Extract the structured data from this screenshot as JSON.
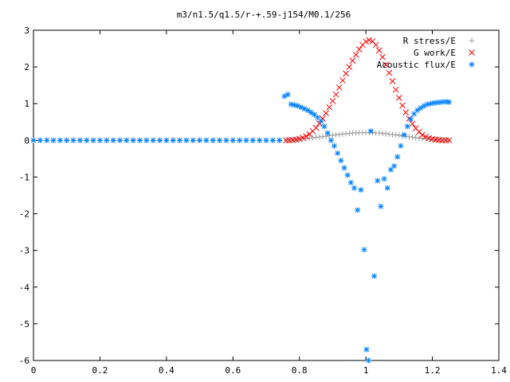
{
  "chart_data": {
    "type": "scatter",
    "title": "m3/n1.5/q1.5/r-+.59-j154/M0.1/256",
    "xlabel": "",
    "ylabel": "",
    "xlim": [
      0,
      1.4
    ],
    "ylim": [
      -6,
      3
    ],
    "xticks": [
      "0",
      "0.2",
      "0.4",
      "0.6",
      "0.8",
      "1",
      "1.2",
      "1.4"
    ],
    "yticks": [
      "3",
      "2",
      "1",
      "0",
      "-1",
      "-2",
      "-3",
      "-4",
      "-5",
      "-6"
    ],
    "grid": false,
    "legend_position": "top-right",
    "series": [
      {
        "name": "R stress/E",
        "marker": "plus",
        "color": "#a0a0a0",
        "x": [
          0.0,
          0.02,
          0.04,
          0.06,
          0.08,
          0.1,
          0.12,
          0.14,
          0.16,
          0.18,
          0.2,
          0.22,
          0.24,
          0.26,
          0.28,
          0.3,
          0.32,
          0.34,
          0.36,
          0.38,
          0.4,
          0.42,
          0.44,
          0.46,
          0.48,
          0.5,
          0.52,
          0.54,
          0.56,
          0.58,
          0.6,
          0.62,
          0.64,
          0.66,
          0.68,
          0.7,
          0.72,
          0.74,
          0.76,
          0.77,
          0.78,
          0.79,
          0.8,
          0.81,
          0.82,
          0.83,
          0.84,
          0.85,
          0.86,
          0.87,
          0.88,
          0.89,
          0.9,
          0.91,
          0.92,
          0.93,
          0.94,
          0.95,
          0.96,
          0.97,
          0.98,
          0.99,
          1.0,
          1.01,
          1.02,
          1.03,
          1.04,
          1.05,
          1.06,
          1.07,
          1.08,
          1.09,
          1.1,
          1.11,
          1.12,
          1.13,
          1.14,
          1.15,
          1.16,
          1.17,
          1.18,
          1.19,
          1.2,
          1.21,
          1.22,
          1.23,
          1.24,
          1.25
        ],
        "y": [
          0,
          0,
          0,
          0,
          0,
          0,
          0,
          0,
          0,
          0,
          0,
          0,
          0,
          0,
          0,
          0,
          0,
          0,
          0,
          0,
          0,
          0,
          0,
          0,
          0,
          0,
          0,
          0,
          0,
          0,
          0,
          0,
          0,
          0,
          0,
          0,
          0,
          0,
          0,
          0.01,
          0.01,
          0.02,
          0.03,
          0.04,
          0.05,
          0.06,
          0.07,
          0.08,
          0.09,
          0.1,
          0.11,
          0.13,
          0.14,
          0.15,
          0.16,
          0.17,
          0.18,
          0.19,
          0.2,
          0.2,
          0.21,
          0.21,
          0.21,
          0.21,
          0.21,
          0.2,
          0.2,
          0.19,
          0.18,
          0.17,
          0.16,
          0.15,
          0.14,
          0.12,
          0.11,
          0.1,
          0.09,
          0.07,
          0.06,
          0.05,
          0.04,
          0.03,
          0.02,
          0.02,
          0.01,
          0.01,
          0.01,
          0.0
        ]
      },
      {
        "name": "G work/E",
        "marker": "cross",
        "color": "#ff0000",
        "x": [
          0.76,
          0.77,
          0.78,
          0.79,
          0.8,
          0.81,
          0.82,
          0.83,
          0.84,
          0.85,
          0.86,
          0.87,
          0.88,
          0.89,
          0.9,
          0.91,
          0.92,
          0.93,
          0.94,
          0.95,
          0.96,
          0.97,
          0.98,
          0.99,
          1.0,
          1.01,
          1.02,
          1.03,
          1.04,
          1.05,
          1.06,
          1.07,
          1.08,
          1.09,
          1.1,
          1.11,
          1.12,
          1.13,
          1.14,
          1.15,
          1.16,
          1.17,
          1.18,
          1.19,
          1.2,
          1.21,
          1.22,
          1.23,
          1.24,
          1.25
        ],
        "y": [
          0.0,
          0.0,
          0.01,
          0.02,
          0.04,
          0.07,
          0.11,
          0.17,
          0.25,
          0.34,
          0.46,
          0.59,
          0.74,
          0.9,
          1.07,
          1.25,
          1.44,
          1.63,
          1.82,
          2.0,
          2.17,
          2.33,
          2.48,
          2.6,
          2.69,
          2.73,
          2.7,
          2.6,
          2.45,
          2.27,
          2.06,
          1.84,
          1.61,
          1.38,
          1.16,
          0.95,
          0.76,
          0.59,
          0.45,
          0.33,
          0.23,
          0.15,
          0.1,
          0.06,
          0.04,
          0.02,
          0.01,
          0.0,
          0.0,
          0.0
        ]
      },
      {
        "name": "Acoustic flux/E",
        "marker": "star",
        "color": "#0080ff",
        "x": [
          0.0,
          0.02,
          0.04,
          0.06,
          0.08,
          0.1,
          0.12,
          0.14,
          0.16,
          0.18,
          0.2,
          0.22,
          0.24,
          0.26,
          0.28,
          0.3,
          0.32,
          0.34,
          0.36,
          0.38,
          0.4,
          0.42,
          0.44,
          0.46,
          0.48,
          0.5,
          0.52,
          0.54,
          0.56,
          0.58,
          0.6,
          0.62,
          0.64,
          0.66,
          0.68,
          0.7,
          0.72,
          0.74,
          0.755,
          0.765,
          0.775,
          0.785,
          0.795,
          0.805,
          0.815,
          0.825,
          0.835,
          0.845,
          0.855,
          0.865,
          0.875,
          0.885,
          0.895,
          0.905,
          0.915,
          0.925,
          0.935,
          0.945,
          0.955,
          0.965,
          0.975,
          0.985,
          0.995,
          1.002,
          1.008,
          1.015,
          1.025,
          1.035,
          1.045,
          1.055,
          1.065,
          1.075,
          1.085,
          1.095,
          1.105,
          1.115,
          1.125,
          1.135,
          1.145,
          1.155,
          1.165,
          1.175,
          1.185,
          1.195,
          1.205,
          1.215,
          1.225,
          1.235,
          1.245,
          1.25
        ],
        "y": [
          0,
          0,
          0,
          0,
          0,
          0,
          0,
          0,
          0,
          0,
          0,
          0,
          0,
          0,
          0,
          0,
          0,
          0,
          0,
          0,
          0,
          0,
          0,
          0,
          0,
          0,
          0,
          0,
          0,
          0,
          0,
          0,
          0,
          0,
          0,
          0,
          0,
          0,
          1.2,
          1.25,
          0.98,
          0.96,
          0.94,
          0.9,
          0.86,
          0.82,
          0.76,
          0.7,
          0.62,
          0.52,
          0.38,
          0.2,
          0.0,
          -0.15,
          -0.35,
          -0.55,
          -0.75,
          -0.95,
          -1.15,
          -1.3,
          -1.9,
          -1.35,
          -2.98,
          -5.7,
          -6.0,
          0.25,
          -3.7,
          -1.1,
          -1.8,
          -1.05,
          -1.3,
          -0.8,
          -0.7,
          -0.45,
          -0.15,
          0.15,
          0.38,
          0.58,
          0.72,
          0.82,
          0.88,
          0.94,
          0.98,
          1.0,
          1.02,
          1.03,
          1.04,
          1.05,
          1.05,
          1.04
        ]
      }
    ]
  }
}
